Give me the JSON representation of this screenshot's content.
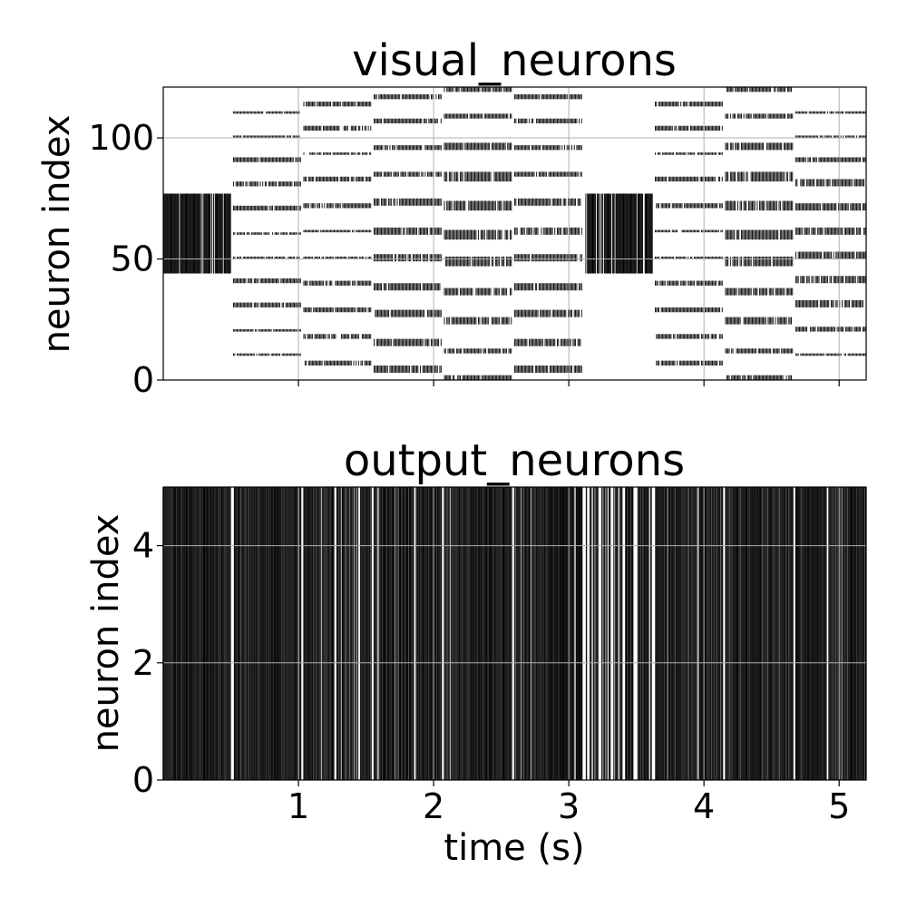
{
  "chart_data": [
    {
      "type": "raster",
      "title": "visual_neurons",
      "xlabel": "",
      "ylabel": "neuron index",
      "xlim": [
        0,
        5.2
      ],
      "ylim": [
        0,
        121
      ],
      "yticks": [
        0,
        50,
        100
      ],
      "yticklabels": [
        "0",
        "50",
        "100"
      ],
      "xticks": [
        1,
        2,
        3,
        4,
        5
      ],
      "show_xticklabels": false,
      "grid": true,
      "blocks": [
        {
          "t_start": 0.0,
          "t_end": 0.5,
          "pattern": "dense",
          "neurons": [
            [
              44,
              77
            ]
          ]
        },
        {
          "t_start": 0.52,
          "t_end": 1.02,
          "pattern": "rows",
          "neurons": [
            [
              10,
              11
            ],
            [
              20,
              21
            ],
            [
              30,
              32
            ],
            [
              40,
              42
            ],
            [
              50,
              51
            ],
            [
              60,
              61
            ],
            [
              70,
              72
            ],
            [
              80,
              82
            ],
            [
              90,
              92
            ],
            [
              100,
              101
            ],
            [
              110,
              111
            ]
          ]
        },
        {
          "t_start": 1.04,
          "t_end": 1.54,
          "pattern": "rows",
          "neurons": [
            [
              6,
              8
            ],
            [
              17,
              19
            ],
            [
              28,
              30
            ],
            [
              39,
              41
            ],
            [
              50,
              51
            ],
            [
              61,
              62
            ],
            [
              71,
              73
            ],
            [
              82,
              84
            ],
            [
              93,
              94
            ],
            [
              103,
              105
            ],
            [
              113,
              115
            ]
          ]
        },
        {
          "t_start": 1.56,
          "t_end": 2.06,
          "pattern": "rows",
          "neurons": [
            [
              3,
              6
            ],
            [
              14,
              17
            ],
            [
              26,
              29
            ],
            [
              37,
              40
            ],
            [
              49,
              52
            ],
            [
              60,
              63
            ],
            [
              72,
              75
            ],
            [
              84,
              86
            ],
            [
              95,
              97
            ],
            [
              106,
              108
            ],
            [
              116,
              118
            ]
          ]
        },
        {
          "t_start": 2.08,
          "t_end": 2.58,
          "pattern": "rows",
          "neurons": [
            [
              0,
              2
            ],
            [
              11,
              13
            ],
            [
              23,
              26
            ],
            [
              35,
              38
            ],
            [
              47,
              51
            ],
            [
              58,
              62
            ],
            [
              70,
              74
            ],
            [
              82,
              86
            ],
            [
              95,
              98
            ],
            [
              108,
              110
            ],
            [
              119,
              121
            ]
          ]
        },
        {
          "t_start": 2.6,
          "t_end": 3.1,
          "pattern": "rows",
          "neurons": [
            [
              3,
              6
            ],
            [
              14,
              17
            ],
            [
              26,
              29
            ],
            [
              37,
              40
            ],
            [
              49,
              52
            ],
            [
              60,
              63
            ],
            [
              72,
              75
            ],
            [
              84,
              86
            ],
            [
              95,
              97
            ],
            [
              106,
              108
            ],
            [
              116,
              118
            ]
          ]
        },
        {
          "t_start": 3.12,
          "t_end": 3.62,
          "pattern": "dense",
          "neurons": [
            [
              44,
              77
            ]
          ]
        },
        {
          "t_start": 3.64,
          "t_end": 4.14,
          "pattern": "rows",
          "neurons": [
            [
              6,
              8
            ],
            [
              17,
              19
            ],
            [
              28,
              30
            ],
            [
              39,
              41
            ],
            [
              50,
              51
            ],
            [
              61,
              62
            ],
            [
              71,
              73
            ],
            [
              82,
              84
            ],
            [
              93,
              94
            ],
            [
              103,
              105
            ],
            [
              113,
              115
            ]
          ]
        },
        {
          "t_start": 4.16,
          "t_end": 4.66,
          "pattern": "rows",
          "neurons": [
            [
              0,
              2
            ],
            [
              11,
              13
            ],
            [
              23,
              26
            ],
            [
              35,
              38
            ],
            [
              47,
              51
            ],
            [
              58,
              62
            ],
            [
              70,
              74
            ],
            [
              82,
              86
            ],
            [
              95,
              98
            ],
            [
              108,
              110
            ],
            [
              119,
              121
            ]
          ]
        },
        {
          "t_start": 4.68,
          "t_end": 5.2,
          "pattern": "rows",
          "neurons": [
            [
              10,
              11
            ],
            [
              20,
              22
            ],
            [
              30,
              33
            ],
            [
              40,
              43
            ],
            [
              50,
              53
            ],
            [
              60,
              63
            ],
            [
              70,
              73
            ],
            [
              80,
              83
            ],
            [
              90,
              92
            ],
            [
              100,
              101
            ],
            [
              110,
              111
            ]
          ]
        }
      ]
    },
    {
      "type": "raster",
      "title": "output_neurons",
      "xlabel": "time (s)",
      "ylabel": "neuron index",
      "xlim": [
        0,
        5.2
      ],
      "ylim": [
        0,
        5
      ],
      "yticks": [
        0,
        2,
        4
      ],
      "yticklabels": [
        "0",
        "2",
        "4"
      ],
      "xticks": [
        1,
        2,
        3,
        4,
        5
      ],
      "xticklabels": [
        "1",
        "2",
        "3",
        "4",
        "5"
      ],
      "grid": true,
      "segments": [
        {
          "t_start": 0.0,
          "t_end": 0.5,
          "darkness": 0.92
        },
        {
          "t_start": 0.52,
          "t_end": 1.02,
          "darkness": 0.78
        },
        {
          "t_start": 1.04,
          "t_end": 1.54,
          "darkness": 0.6
        },
        {
          "t_start": 1.56,
          "t_end": 2.06,
          "darkness": 0.68
        },
        {
          "t_start": 2.08,
          "t_end": 2.58,
          "darkness": 0.8
        },
        {
          "t_start": 2.6,
          "t_end": 3.1,
          "darkness": 0.72
        },
        {
          "t_start": 3.12,
          "t_end": 3.62,
          "darkness": 0.3
        },
        {
          "t_start": 3.64,
          "t_end": 4.14,
          "darkness": 0.66
        },
        {
          "t_start": 4.16,
          "t_end": 4.66,
          "darkness": 0.8
        },
        {
          "t_start": 4.68,
          "t_end": 5.2,
          "darkness": 0.74
        }
      ]
    }
  ],
  "colors": {
    "spike": "#000000",
    "grid": "#b0b0b0",
    "background": "#ffffff",
    "axis": "#000000"
  }
}
